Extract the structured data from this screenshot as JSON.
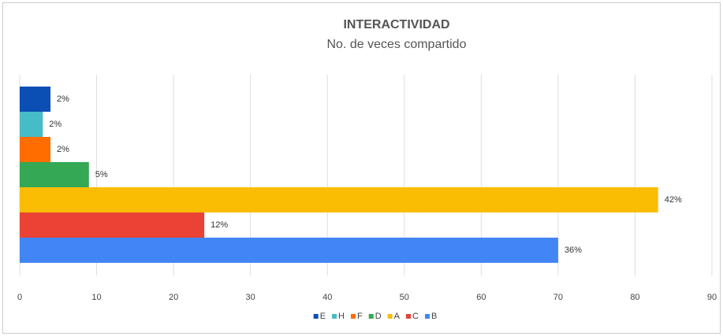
{
  "chart_data": {
    "type": "bar",
    "orientation": "horizontal",
    "title": "INTERACTIVIDAD",
    "subtitle": "No. de veces compartido",
    "series": [
      {
        "name": "E",
        "color": "#0b4fb4",
        "values": [
          4
        ],
        "value_labels": [
          "2%"
        ]
      },
      {
        "name": "H",
        "color": "#46bdc6",
        "values": [
          3
        ],
        "value_labels": [
          "2%"
        ]
      },
      {
        "name": "F",
        "color": "#ff6d01",
        "values": [
          4
        ],
        "value_labels": [
          "2%"
        ]
      },
      {
        "name": "D",
        "color": "#34a853",
        "values": [
          9
        ],
        "value_labels": [
          "5%"
        ]
      },
      {
        "name": "A",
        "color": "#fbbc04",
        "values": [
          83
        ],
        "value_labels": [
          "42%"
        ]
      },
      {
        "name": "C",
        "color": "#ea4335",
        "values": [
          24
        ],
        "value_labels": [
          "12%"
        ]
      },
      {
        "name": "B",
        "color": "#4285f4",
        "values": [
          70
        ],
        "value_labels": [
          "36%"
        ]
      }
    ],
    "xlim": [
      0,
      90
    ],
    "xticks": [
      0,
      10,
      20,
      30,
      40,
      50,
      60,
      70,
      80,
      90
    ],
    "grid": true,
    "legend": "bottom"
  }
}
